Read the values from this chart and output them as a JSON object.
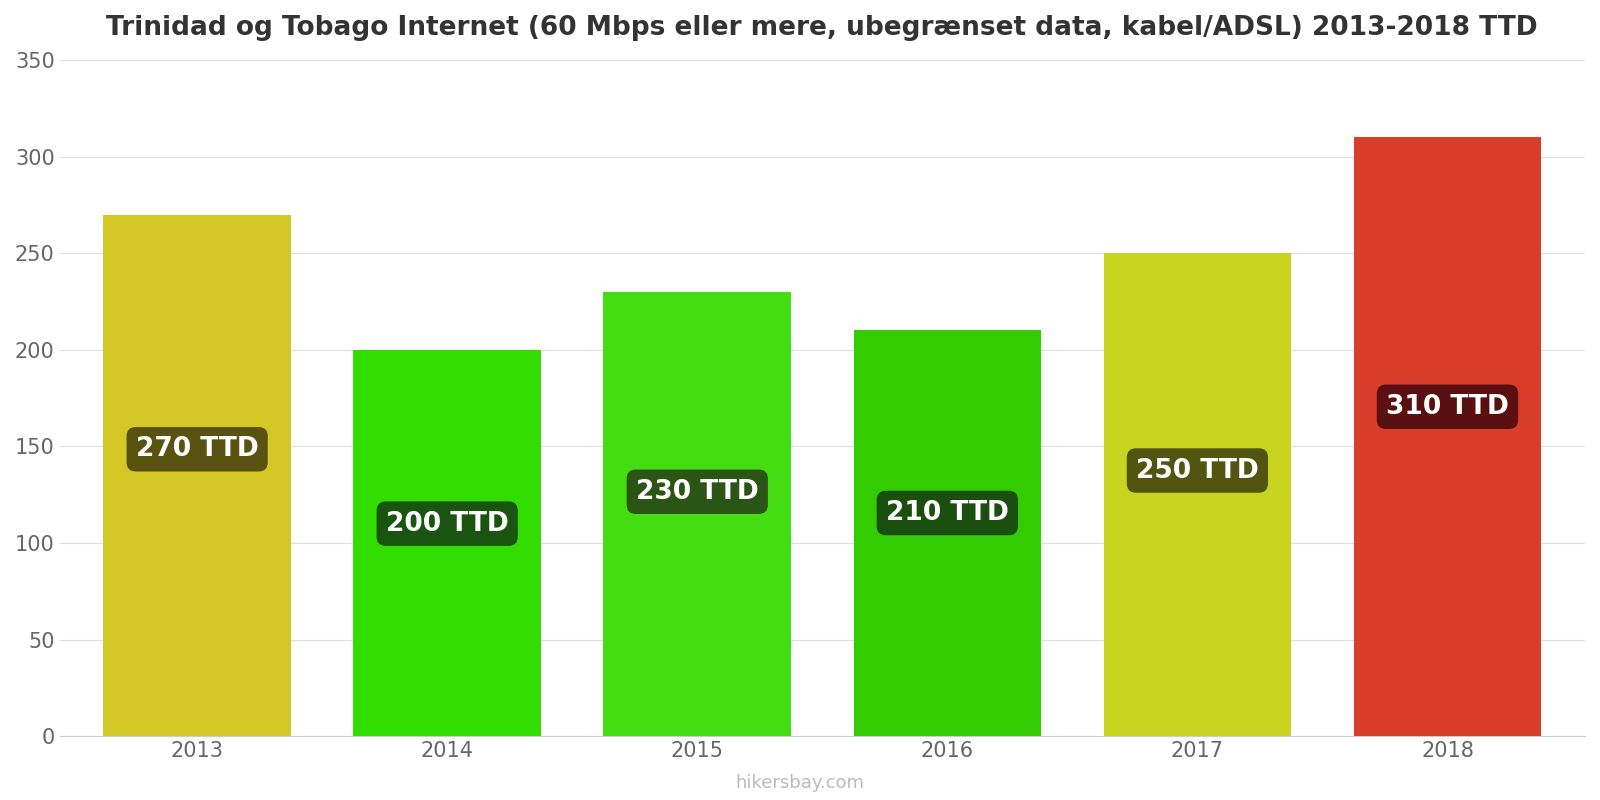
{
  "title": "Trinidad og Tobago Internet (60 Mbps eller mere, ubegrænset data, kabel/ADSL) 2013-2018 TTD",
  "years": [
    2013,
    2014,
    2015,
    2016,
    2017,
    2018
  ],
  "values": [
    270,
    200,
    230,
    210,
    250,
    310
  ],
  "bar_colors": [
    "#d4c827",
    "#33dd00",
    "#44dd11",
    "#33cc00",
    "#c8d420",
    "#d93d2b"
  ],
  "label_bg_colors": [
    "#5a5210",
    "#1a5510",
    "#2a5515",
    "#1a4f10",
    "#525510",
    "#5a1010"
  ],
  "labels": [
    "270 TTD",
    "200 TTD",
    "230 TTD",
    "210 TTD",
    "250 TTD",
    "310 TTD"
  ],
  "ylim": [
    0,
    350
  ],
  "yticks": [
    0,
    50,
    100,
    150,
    200,
    250,
    300,
    350
  ],
  "watermark": "hikersbay.com",
  "title_fontsize": 19,
  "label_fontsize": 19,
  "tick_fontsize": 15,
  "background_color": "#ffffff",
  "bar_width": 0.75
}
